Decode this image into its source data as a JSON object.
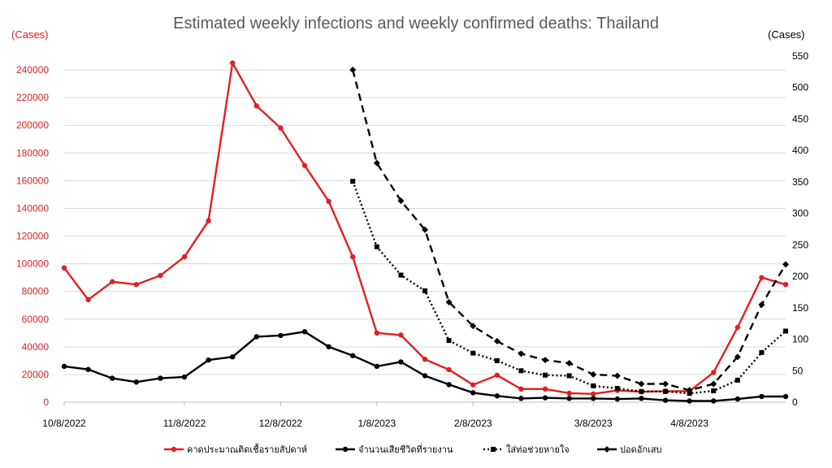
{
  "chart_data": {
    "type": "line",
    "title": "Estimated weekly infections and weekly confirmed deaths: Thailand",
    "left_axis_unit": "(Cases)",
    "right_axis_unit": "(Cases)",
    "ylim_left": [
      0,
      250000
    ],
    "ylim_right": [
      0,
      550
    ],
    "left_ticks": [
      "0",
      "20000",
      "40000",
      "60000",
      "80000",
      "100000",
      "120000",
      "140000",
      "160000",
      "180000",
      "200000",
      "220000",
      "240000"
    ],
    "right_ticks": [
      "0",
      "50",
      "100",
      "150",
      "200",
      "250",
      "300",
      "350",
      "400",
      "450",
      "500",
      "550"
    ],
    "x_labels": [
      "10/8/2022",
      "11/8/2022",
      "12/8/2022",
      "1/8/2023",
      "2/8/2023",
      "3/8/2023",
      "4/8/2023"
    ],
    "x_label_weeks": [
      0,
      5,
      9,
      13,
      17,
      22,
      26
    ],
    "n_weeks": 31,
    "grid": true,
    "legend_position": "bottom",
    "series": [
      {
        "name": "คาดประมาณติดเชื้อรายสัปดาห์",
        "axis": "left",
        "color": "#e02020",
        "style": "solid-circle",
        "x": [
          0,
          1,
          2,
          3,
          4,
          5,
          6,
          7,
          8,
          9,
          10,
          11,
          12,
          13,
          14,
          15,
          16,
          17,
          18,
          19,
          20,
          21,
          22,
          23,
          24,
          25,
          26,
          27,
          28,
          29,
          30
        ],
        "values": [
          97000,
          74000,
          87000,
          85000,
          91500,
          105000,
          131000,
          245000,
          214000,
          198000,
          171000,
          145000,
          105000,
          50000,
          48500,
          31000,
          23500,
          12500,
          19500,
          9500,
          9500,
          6500,
          6000,
          8500,
          7500,
          8000,
          8000,
          21500,
          54000,
          90000,
          85000
        ]
      },
      {
        "name": "จำนวนเสียชีวิตที่รายงาน",
        "axis": "right",
        "color": "#000000",
        "style": "solid-circle",
        "x": [
          0,
          1,
          2,
          3,
          4,
          5,
          6,
          7,
          8,
          9,
          10,
          11,
          12,
          13,
          14,
          15,
          16,
          17,
          18,
          19,
          20,
          21,
          22,
          23,
          24,
          25,
          26,
          27,
          28,
          29,
          30
        ],
        "values": [
          57,
          52,
          38,
          32,
          38,
          40,
          67,
          72,
          104,
          106,
          112,
          88,
          74,
          57,
          64,
          42,
          28,
          15,
          10,
          6,
          7,
          6,
          6,
          5,
          6,
          3,
          2,
          2,
          5,
          9,
          9
        ]
      },
      {
        "name": "ใส่ท่อช่วยหายใจ",
        "axis": "right",
        "color": "#000000",
        "style": "dotted-square",
        "x": [
          12,
          13,
          14,
          15,
          16,
          17,
          18,
          19,
          20,
          21,
          22,
          23,
          24,
          25,
          26,
          27,
          28,
          29,
          30
        ],
        "values": [
          351,
          247,
          202,
          177,
          98,
          78,
          66,
          50,
          43,
          42,
          26,
          22,
          17,
          17,
          14,
          18,
          35,
          79,
          113
        ]
      },
      {
        "name": "ปอดอักเสบ",
        "axis": "right",
        "color": "#000000",
        "style": "dashed-diamond",
        "x": [
          12,
          13,
          14,
          15,
          16,
          17,
          18,
          19,
          20,
          21,
          22,
          23,
          24,
          25,
          26,
          27,
          28,
          29,
          30
        ],
        "values": [
          528,
          380,
          320,
          274,
          159,
          121,
          97,
          77,
          67,
          62,
          44,
          42,
          29,
          29,
          19,
          29,
          72,
          155,
          219
        ]
      }
    ]
  }
}
